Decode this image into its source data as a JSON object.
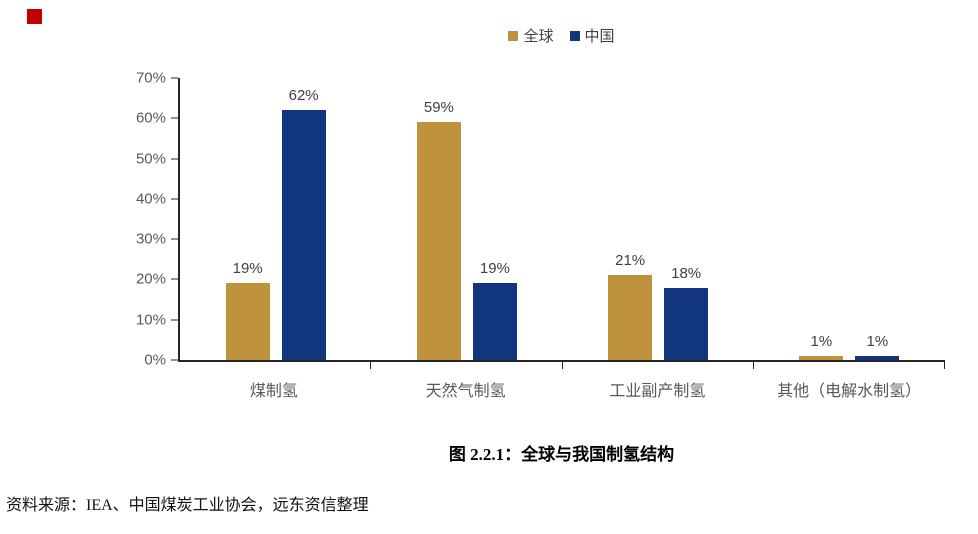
{
  "page": {
    "marker_color": "#C00000"
  },
  "chart_data": {
    "type": "bar",
    "title": "图 2.2.1：全球与我国制氢结构",
    "categories": [
      "煤制氢",
      "天然气制氢",
      "工业副产制氢",
      "其他（电解水制氢）"
    ],
    "series": [
      {
        "name": "全球",
        "color": "#BF923E",
        "values": [
          19,
          59,
          21,
          1
        ],
        "labels": [
          "19%",
          "59%",
          "21%",
          "1%"
        ]
      },
      {
        "name": "中国",
        "color": "#12367E",
        "values": [
          62,
          19,
          18,
          1
        ],
        "labels": [
          "62%",
          "19%",
          "18%",
          "1%"
        ]
      }
    ],
    "y_axis": {
      "min": 0,
      "max": 70,
      "step": 10,
      "tick_labels": [
        "0%",
        "10%",
        "20%",
        "30%",
        "40%",
        "50%",
        "60%",
        "70%"
      ]
    },
    "legend_position": "top-center",
    "grid": false,
    "axis_color": "#262626",
    "tick_label_color": "#595959",
    "value_label_color": "#404040"
  },
  "caption": "图 2.2.1：全球与我国制氢结构",
  "source": "资料来源：IEA、中国煤炭工业协会，远东资信整理"
}
